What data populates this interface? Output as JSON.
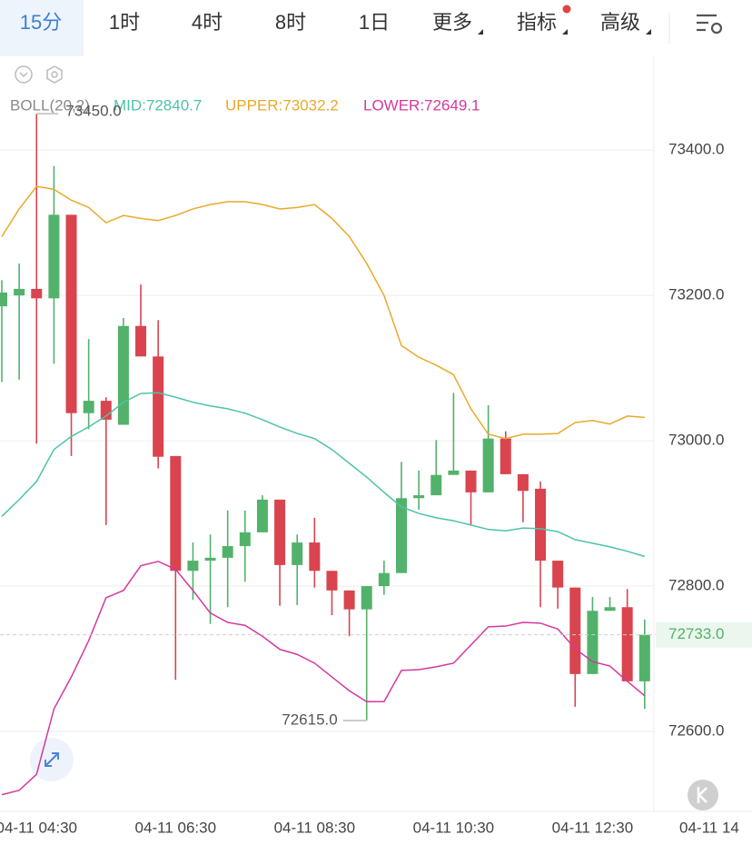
{
  "tabs": [
    "15分",
    "1时",
    "4时",
    "8时",
    "1日",
    "更多",
    "指标",
    "高级"
  ],
  "chart_data": {
    "type": "candlestick",
    "indicator": "BOLL(20,2)",
    "categories": [
      null,
      null,
      "04-11 04:30",
      null,
      null,
      null,
      null,
      null,
      null,
      null,
      "04-11 06:30",
      null,
      null,
      null,
      null,
      null,
      null,
      null,
      "04-11 08:30",
      null,
      null,
      null,
      null,
      null,
      null,
      null,
      "04-11 10:30",
      null,
      null,
      null,
      null,
      null,
      null,
      null,
      "04-11 12:30",
      null,
      null,
      null
    ],
    "x_axis_overflow_label": "04-11 14",
    "open": [
      73185,
      73200,
      73209,
      73196,
      73311,
      73038,
      73055,
      73022,
      73158,
      73116,
      72979,
      72821,
      72835,
      72839,
      72855,
      72874,
      72919,
      72829,
      72860,
      72821,
      72794,
      72768,
      72800,
      72818,
      72921,
      72925,
      72953,
      72959,
      72929,
      73003,
      72954,
      72934,
      72835,
      72798,
      72679,
      72766,
      72771,
      72669
    ],
    "high": [
      73221,
      73244,
      73450,
      73378,
      73311,
      73140,
      73060,
      73169,
      73215,
      73166,
      72979,
      72860,
      72871,
      72904,
      72904,
      72925,
      72919,
      72871,
      72894,
      72821,
      72794,
      72800,
      72835,
      72971,
      72959,
      73001,
      73066,
      72959,
      73049,
      73013,
      72954,
      72944,
      72835,
      72798,
      72785,
      72785,
      72796,
      72754
    ],
    "low": [
      73081,
      73084,
      72996,
      73106,
      72979,
      73016,
      72884,
      73022,
      73116,
      72962,
      72671,
      72781,
      72748,
      72771,
      72806,
      72874,
      72773,
      72774,
      72798,
      72760,
      72731,
      72615,
      72788,
      72818,
      72905,
      72925,
      72953,
      72884,
      72929,
      72954,
      72888,
      72771,
      72769,
      72634,
      72679,
      72766,
      72669,
      72631
    ],
    "close": [
      73204,
      73209,
      73196,
      73311,
      73038,
      73055,
      73029,
      73158,
      73116,
      72978,
      72821,
      72835,
      72839,
      72855,
      72874,
      72919,
      72829,
      72860,
      72821,
      72794,
      72768,
      72800,
      72818,
      72921,
      72925,
      72953,
      72959,
      72929,
      73003,
      72954,
      72931,
      72835,
      72798,
      72679,
      72766,
      72771,
      72669,
      72733
    ],
    "up_color": "#52b26b",
    "down_color": "#d9444f",
    "series": [
      {
        "name": "MID:72840.7",
        "color": "#4cc3a8",
        "values": [
          72896,
          72919,
          72944,
          72988,
          73006,
          73019,
          73034,
          73053,
          73065,
          73066,
          73060,
          73053,
          73048,
          73044,
          73038,
          73029,
          73019,
          73010,
          73003,
          72988,
          72969,
          72950,
          72929,
          72909,
          72900,
          72894,
          72890,
          72884,
          72878,
          72876,
          72880,
          72879,
          72875,
          72864,
          72859,
          72854,
          72848,
          72840.7
        ]
      },
      {
        "name": "UPPER:73032.2",
        "color": "#e9a92a",
        "values": [
          73281,
          73319,
          73350,
          73346,
          73331,
          73321,
          73300,
          73310,
          73306,
          73303,
          73310,
          73319,
          73325,
          73329,
          73329,
          73325,
          73319,
          73321,
          73325,
          73306,
          73281,
          73244,
          73200,
          73131,
          73115,
          73104,
          73091,
          73044,
          73009,
          73003,
          73009,
          73009,
          73010,
          73025,
          73028,
          73023,
          73034,
          73032.2
        ]
      },
      {
        "name": "LOWER:72649.1",
        "color": "#d4389f",
        "values": [
          72513,
          72519,
          72541,
          72631,
          72675,
          72725,
          72784,
          72794,
          72828,
          72834,
          72823,
          72794,
          72763,
          72750,
          72746,
          72731,
          72713,
          72706,
          72694,
          72675,
          72656,
          72641,
          72641,
          72684,
          72685,
          72689,
          72694,
          72719,
          72744,
          72745,
          72750,
          72749,
          72741,
          72714,
          72696,
          72690,
          72669,
          72649.1
        ]
      }
    ],
    "max_label": {
      "value": 73450,
      "label": "73450.0"
    },
    "min_label": {
      "value": 72615,
      "label": "72615.0"
    },
    "last_price": {
      "value": 72733,
      "label": "72733.0"
    },
    "ylim": [
      72490,
      73529
    ],
    "yticks": [
      {
        "value": 72600,
        "label": "72600.0"
      },
      {
        "value": 72800,
        "label": "72800.0"
      },
      {
        "value": 73000,
        "label": "73000.0"
      },
      {
        "value": 73200,
        "label": "73200.0"
      },
      {
        "value": 73400,
        "label": "73400.0"
      }
    ],
    "grid": true
  }
}
